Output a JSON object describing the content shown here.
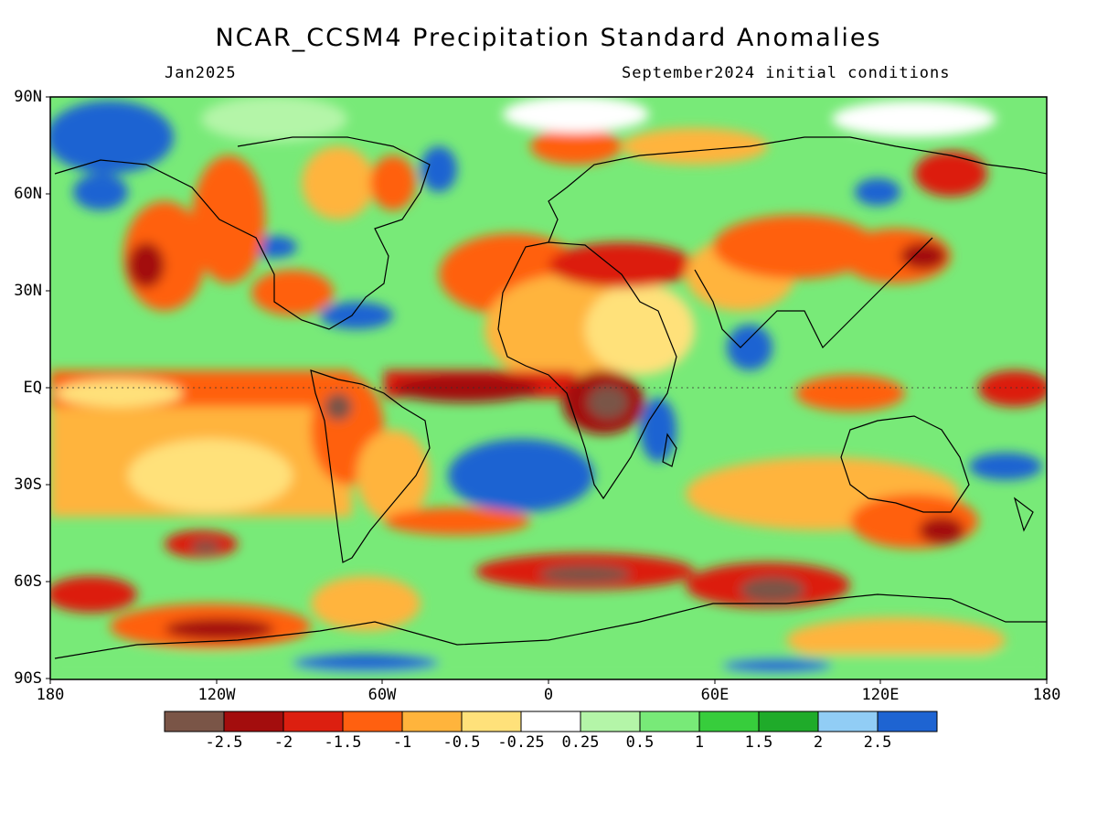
{
  "title": "NCAR_CCSM4 Precipitation Standard Anomalies",
  "valid_month": "Jan2025",
  "initial_conditions": "September2024 initial conditions",
  "lat_labels": [
    "90N",
    "60N",
    "30N",
    "EQ",
    "30S",
    "60S",
    "90S"
  ],
  "lon_labels": [
    "180",
    "120W",
    "60W",
    "0",
    "60E",
    "120E",
    "180"
  ],
  "colorbar": {
    "colors": [
      "#7a5547",
      "#a30d0d",
      "#dc1f10",
      "#ff6010",
      "#ffb43c",
      "#ffe17a",
      "#ffffff",
      "#b4f5a8",
      "#78ea78",
      "#37cd3c",
      "#1fab2a",
      "#91cdf5",
      "#1e64d2"
    ],
    "tick_labels": [
      "-2.5",
      "-2",
      "-1.5",
      "-1",
      "-0.5",
      "-0.25",
      "0.25",
      "0.5",
      "1",
      "1.5",
      "2",
      "2.5"
    ]
  }
}
